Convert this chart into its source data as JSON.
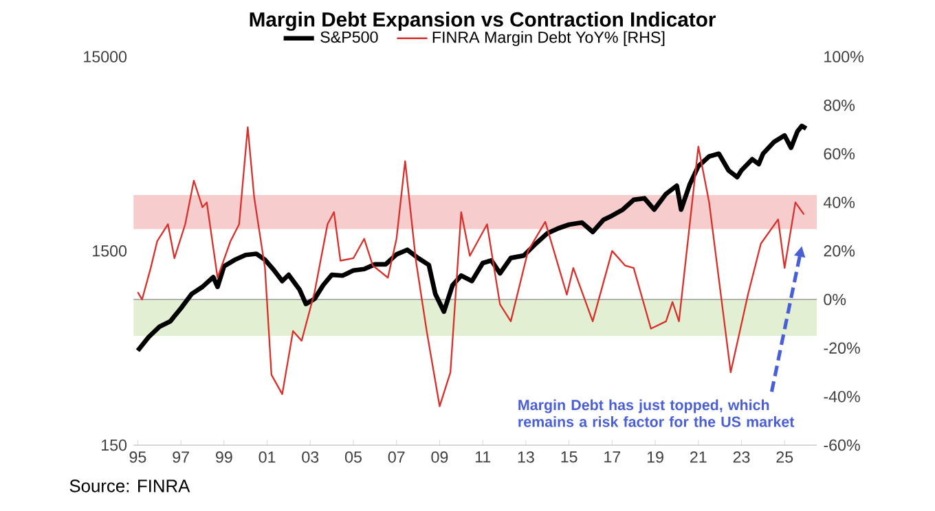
{
  "chart_data": {
    "type": "line",
    "title": "Margin Debt Expansion vs Contraction Indicator",
    "series": [
      {
        "name": "S&P500",
        "color": "#000000",
        "x": [
          1995.0,
          1995.5,
          1996.0,
          1996.5,
          1997.0,
          1997.5,
          1998.0,
          1998.5,
          1998.7,
          1999.0,
          1999.5,
          2000.0,
          2000.5,
          2000.9,
          2001.3,
          2001.7,
          2002.0,
          2002.5,
          2002.8,
          2003.2,
          2003.6,
          2004.0,
          2004.5,
          2005.0,
          2005.5,
          2006.0,
          2006.5,
          2007.0,
          2007.5,
          2008.0,
          2008.5,
          2008.8,
          2009.2,
          2009.6,
          2010.0,
          2010.5,
          2011.0,
          2011.4,
          2011.8,
          2012.3,
          2012.9,
          2013.5,
          2014.0,
          2014.5,
          2015.0,
          2015.6,
          2016.1,
          2016.6,
          2017.0,
          2017.5,
          2018.0,
          2018.5,
          2018.95,
          2019.5,
          2020.0,
          2020.2,
          2020.6,
          2021.0,
          2021.5,
          2021.95,
          2022.4,
          2022.8,
          2023.0,
          2023.5,
          2023.8,
          2024.0,
          2024.5,
          2025.0,
          2025.3,
          2025.6,
          2025.8,
          2026.0
        ],
        "values": [
          460,
          540,
          610,
          650,
          760,
          900,
          980,
          1100,
          980,
          1250,
          1350,
          1430,
          1450,
          1350,
          1200,
          1050,
          1130,
          950,
          800,
          850,
          1000,
          1130,
          1120,
          1190,
          1210,
          1280,
          1280,
          1440,
          1520,
          1380,
          1270,
          900,
          730,
          1000,
          1120,
          1050,
          1300,
          1340,
          1150,
          1380,
          1420,
          1650,
          1850,
          1960,
          2050,
          2100,
          1880,
          2170,
          2280,
          2450,
          2750,
          2800,
          2450,
          2950,
          3250,
          2450,
          3300,
          4100,
          4600,
          4750,
          3900,
          3600,
          3900,
          4450,
          4200,
          4750,
          5450,
          5900,
          5100,
          6200,
          6600,
          6400
        ]
      },
      {
        "name": "FINRA Margin Debt YoY% [RHS]",
        "color": "#d9302c",
        "axis": "y2",
        "x": [
          1995.0,
          1995.2,
          1995.6,
          1995.9,
          1996.4,
          1996.7,
          1997.2,
          1997.6,
          1998.0,
          1998.2,
          1998.7,
          1999.3,
          1999.7,
          2000.1,
          2000.4,
          2000.9,
          2001.2,
          2001.7,
          2002.2,
          2002.6,
          2003.2,
          2003.8,
          2004.1,
          2004.4,
          2005.0,
          2005.5,
          2005.9,
          2006.6,
          2007.0,
          2007.4,
          2007.9,
          2008.4,
          2009.0,
          2009.5,
          2010.0,
          2010.4,
          2011.2,
          2011.8,
          2012.3,
          2013.1,
          2013.9,
          2014.3,
          2014.9,
          2015.2,
          2016.1,
          2017.0,
          2017.6,
          2018.0,
          2018.8,
          2019.5,
          2019.8,
          2020.1,
          2021.0,
          2021.5,
          2022.5,
          2023.3,
          2023.9,
          2024.7,
          2025.0,
          2025.5,
          2025.9
        ],
        "values": [
          3,
          0,
          13,
          24,
          31,
          17,
          31,
          49,
          38,
          40,
          9,
          24,
          31,
          71,
          42,
          13,
          -31,
          -39,
          -13,
          -17,
          3,
          31,
          36,
          16,
          17,
          25,
          14,
          9,
          25,
          57,
          16,
          -13,
          -44,
          -30,
          36,
          18,
          31,
          -2,
          -9,
          20,
          32,
          20,
          2,
          13,
          -9,
          20,
          14,
          13,
          -12,
          -9,
          -1,
          -9,
          63,
          40,
          -30,
          2,
          23,
          33,
          13,
          40,
          35
        ]
      }
    ],
    "xlim": [
      1994.8,
      2026.5
    ],
    "xticks": [
      {
        "value": 1995,
        "label": "95"
      },
      {
        "value": 1997,
        "label": "97"
      },
      {
        "value": 1999,
        "label": "99"
      },
      {
        "value": 2001,
        "label": "01"
      },
      {
        "value": 2003,
        "label": "03"
      },
      {
        "value": 2005,
        "label": "05"
      },
      {
        "value": 2007,
        "label": "07"
      },
      {
        "value": 2009,
        "label": "09"
      },
      {
        "value": 2011,
        "label": "11"
      },
      {
        "value": 2013,
        "label": "13"
      },
      {
        "value": 2015,
        "label": "15"
      },
      {
        "value": 2017,
        "label": "17"
      },
      {
        "value": 2019,
        "label": "19"
      },
      {
        "value": 2021,
        "label": "21"
      },
      {
        "value": 2023,
        "label": "23"
      },
      {
        "value": 2025,
        "label": "25"
      }
    ],
    "log": "y",
    "ylim": [
      150,
      15000
    ],
    "yticks": [
      150,
      1500,
      15000
    ],
    "y2lim": [
      -60,
      100
    ],
    "y2ticks": [
      {
        "value": -60,
        "label": "-60%"
      },
      {
        "value": -40,
        "label": "-40%"
      },
      {
        "value": -20,
        "label": "-20%"
      },
      {
        "value": 0,
        "label": "0%"
      },
      {
        "value": 20,
        "label": "20%"
      },
      {
        "value": 40,
        "label": "40%"
      },
      {
        "value": 60,
        "label": "60%"
      },
      {
        "value": 80,
        "label": "80%"
      },
      {
        "value": 100,
        "label": "100%"
      }
    ],
    "bands": [
      {
        "axis": "y2",
        "from": 29,
        "to": 43,
        "color": "#f6cccc"
      },
      {
        "axis": "y2",
        "from": -15,
        "to": 0,
        "color": "#e3efd3"
      }
    ],
    "ref_lines": [
      {
        "axis": "y2",
        "value": 0,
        "color": "#9a9a9a"
      }
    ],
    "annotations": [
      "Margin Debt has just topped, which remains a risk factor for the US market",
      "Source: FINRA"
    ],
    "legend": "top",
    "grid": false,
    "marker": "none",
    "line_style": "solid"
  }
}
